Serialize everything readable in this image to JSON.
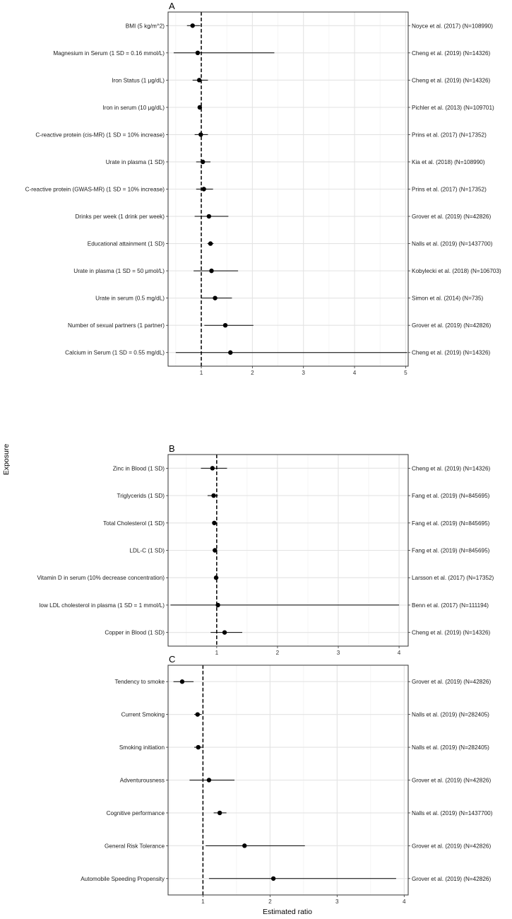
{
  "axis_titles": {
    "x": "Estimated ratio",
    "y": "Exposure"
  },
  "colors": {
    "point": "#000000",
    "grid_major": "#e3e3e3",
    "grid_minor": "#f2f2f2",
    "frame": "#333333",
    "reference_line": "#000000"
  },
  "chart_data": [
    {
      "type": "scatter",
      "panel": "A",
      "reference_line": 1,
      "grid": true,
      "xlim": [
        0.35,
        5.05
      ],
      "xticks": [
        1,
        2,
        3,
        4,
        5
      ],
      "xtick_labels": [
        "1",
        "2",
        "3",
        "4",
        "5"
      ],
      "rows": [
        {
          "exposure": "BMI (5 kg/m^2)",
          "source": "Noyce et al. (2017) (N=108990)",
          "estimate": 0.83,
          "lower": 0.72,
          "upper": 0.98
        },
        {
          "exposure": "Magnesium in Serum (1 SD = 0.16 mmol/L)",
          "source": "Cheng et al. (2019) (N=14326)",
          "estimate": 0.93,
          "lower": 0.46,
          "upper": 2.43
        },
        {
          "exposure": "Iron Status (1 μg/dL)",
          "source": "Cheng et al. (2019) (N=14326)",
          "estimate": 0.96,
          "lower": 0.83,
          "upper": 1.13
        },
        {
          "exposure": "Iron in serum (10 μg/dL)",
          "source": "Pichler et al. (2013) (N=109701)",
          "estimate": 0.97,
          "lower": 0.94,
          "upper": 1.0
        },
        {
          "exposure": "C-reactive protein (cis-MR) (1 SD = 10% increase)",
          "source": "Prins et al. (2017) (N=17352)",
          "estimate": 0.99,
          "lower": 0.87,
          "upper": 1.13
        },
        {
          "exposure": "Urate in plasma (1 SD)",
          "source": "Kia et al. (2018) (N=108990)",
          "estimate": 1.03,
          "lower": 0.9,
          "upper": 1.18
        },
        {
          "exposure": "C-reactive protein (GWAS-MR) (1 SD = 10% increase)",
          "source": "Prins et al. (2017) (N=17352)",
          "estimate": 1.05,
          "lower": 0.9,
          "upper": 1.23
        },
        {
          "exposure": "Drinks per week (1 drink per week)",
          "source": "Grover et al. (2019) (N=42826)",
          "estimate": 1.15,
          "lower": 0.87,
          "upper": 1.53
        },
        {
          "exposure": "Educational attainment (1 SD)",
          "source": "Nalls et al. (2019) (N=1437700)",
          "estimate": 1.18,
          "lower": 1.12,
          "upper": 1.24
        },
        {
          "exposure": "Urate in plasma (1 SD = 50 μmol/L)",
          "source": "Kobylecki et al. (2018) (N=106703)",
          "estimate": 1.2,
          "lower": 0.85,
          "upper": 1.72
        },
        {
          "exposure": "Urate in serum (0.5 mg/dL)",
          "source": "Simon et al. (2014) (N=735)",
          "estimate": 1.27,
          "lower": 1.0,
          "upper": 1.6
        },
        {
          "exposure": "Number of sexual partners (1 partner)",
          "source": "Grover et al. (2019) (N=42826)",
          "estimate": 1.47,
          "lower": 1.06,
          "upper": 2.02
        },
        {
          "exposure": "Calcium in Serum (1 SD = 0.55 mg/dL)",
          "source": "Cheng et al. (2019) (N=14326)",
          "estimate": 1.57,
          "lower": 0.5,
          "upper": 5.03
        }
      ]
    },
    {
      "type": "scatter",
      "panel": "B",
      "reference_line": 1,
      "grid": true,
      "xlim": [
        0.2,
        4.15
      ],
      "xticks": [
        1,
        2,
        3,
        4
      ],
      "xtick_labels": [
        "1",
        "2",
        "3",
        "4"
      ],
      "rows": [
        {
          "exposure": "Zinc in Blood (1 SD)",
          "source": "Cheng et al. (2019) (N=14326)",
          "estimate": 0.93,
          "lower": 0.74,
          "upper": 1.17
        },
        {
          "exposure": "Triglycerids (1 SD)",
          "source": "Fang et al. (2019) (N=845695)",
          "estimate": 0.95,
          "lower": 0.85,
          "upper": 1.02
        },
        {
          "exposure": "Total Cholesterol (1 SD)",
          "source": "Fang et al. (2019) (N=845695)",
          "estimate": 0.96,
          "lower": 0.93,
          "upper": 0.99
        },
        {
          "exposure": "LDL-C (1 SD)",
          "source": "Fang et al. (2019) (N=845695)",
          "estimate": 0.97,
          "lower": 0.94,
          "upper": 1.0
        },
        {
          "exposure": "Vitamin D in serum (10% decrease concentration)",
          "source": "Larsson et al. (2017) (N=17352)",
          "estimate": 0.99,
          "lower": 0.96,
          "upper": 1.03
        },
        {
          "exposure": "low LDL cholesterol in plasma (1 SD = 1 mmol/L)",
          "source": "Benn et al. (2017) (N=111194)",
          "estimate": 1.02,
          "lower": 0.24,
          "upper": 4.0
        },
        {
          "exposure": "Copper in Blood (1 SD)",
          "source": "Cheng et al. (2019) (N=14326)",
          "estimate": 1.13,
          "lower": 0.9,
          "upper": 1.42
        }
      ]
    },
    {
      "type": "scatter",
      "panel": "C",
      "reference_line": 1,
      "grid": true,
      "xlim": [
        0.48,
        4.06
      ],
      "xticks": [
        1,
        2,
        3,
        4
      ],
      "xtick_labels": [
        "1",
        "2",
        "3",
        "4"
      ],
      "rows": [
        {
          "exposure": "Tendency to smoke",
          "source": "Grover et al. (2019) (N=42826)",
          "estimate": 0.69,
          "lower": 0.56,
          "upper": 0.86
        },
        {
          "exposure": "Current Smoking",
          "source": "Nalls et al. (2019) (N=282405)",
          "estimate": 0.92,
          "lower": 0.87,
          "upper": 0.98
        },
        {
          "exposure": "Smoking initiation",
          "source": "Nalls et al. (2019) (N=282405)",
          "estimate": 0.93,
          "lower": 0.87,
          "upper": 0.99
        },
        {
          "exposure": "Adventurousness",
          "source": "Grover et al. (2019) (N=42826)",
          "estimate": 1.09,
          "lower": 0.8,
          "upper": 1.47
        },
        {
          "exposure": "Cognitive performance",
          "source": "Nalls et al. (2019) (N=1437700)",
          "estimate": 1.25,
          "lower": 1.16,
          "upper": 1.35
        },
        {
          "exposure": "General Risk Tolerance",
          "source": "Grover et al. (2019) (N=42826)",
          "estimate": 1.62,
          "lower": 1.04,
          "upper": 2.52
        },
        {
          "exposure": "Automobile Speeding Propensity",
          "source": "Grover et al. (2019) (N=42826)",
          "estimate": 2.05,
          "lower": 1.09,
          "upper": 3.88
        }
      ]
    }
  ]
}
